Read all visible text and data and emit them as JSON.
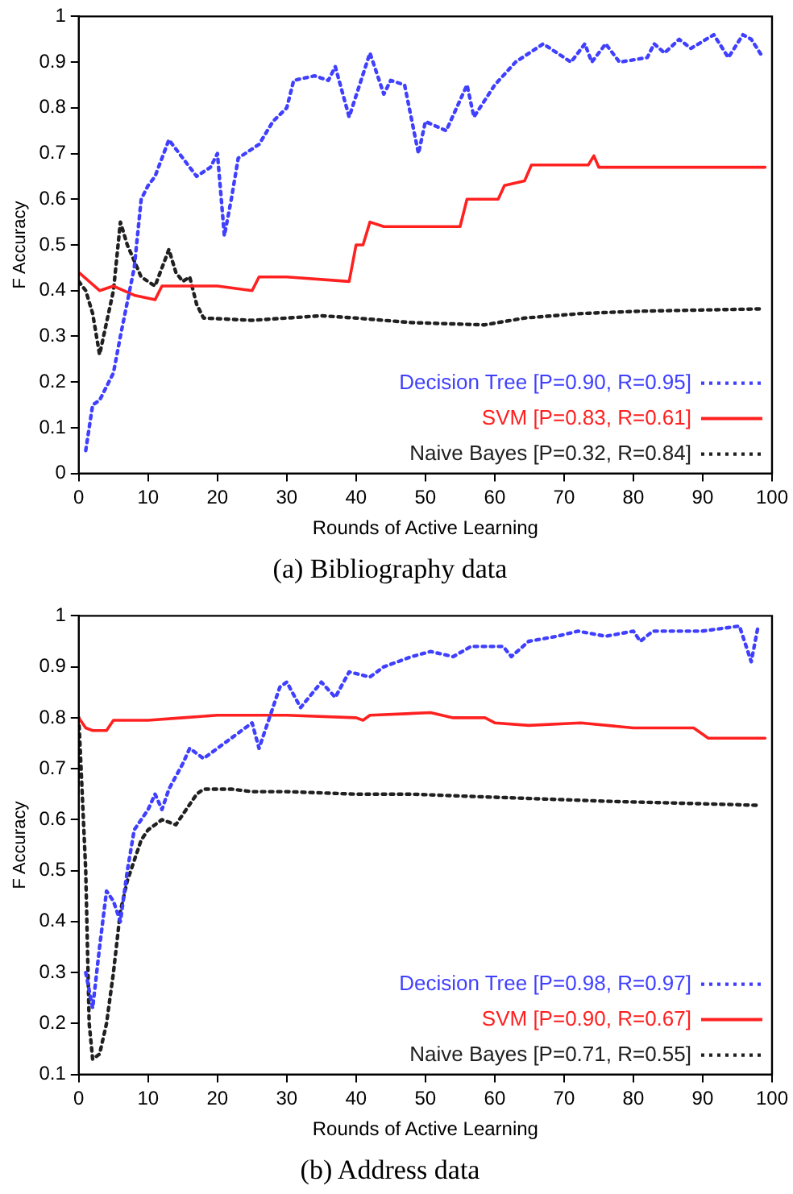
{
  "chart_data": [
    {
      "type": "line",
      "title": "(a) Bibliography data",
      "xlabel": "Rounds of Active Learning",
      "ylabel": "F Accuracy",
      "xlim": [
        0,
        100
      ],
      "xticks": [
        0,
        10,
        20,
        30,
        40,
        50,
        60,
        70,
        80,
        90,
        100
      ],
      "ylim": [
        0,
        1
      ],
      "yticks": [
        0,
        0.1,
        0.2,
        0.3,
        0.4,
        0.5,
        0.6,
        0.7,
        0.8,
        0.9,
        1
      ],
      "grid": false,
      "legend": "bottom right",
      "series": [
        {
          "name": "Decision Tree [P=0.90, R=0.95]",
          "color": "#3f3fff",
          "line_style": "dotted",
          "x": [
            1,
            2,
            3,
            5,
            6,
            8,
            9,
            10,
            11,
            13,
            14,
            17,
            19,
            20,
            21,
            22,
            23,
            26,
            28,
            30,
            31,
            34,
            36,
            37,
            39,
            42,
            44,
            45,
            47,
            49,
            50,
            53,
            56,
            57,
            60,
            63,
            67,
            71,
            73,
            74,
            76,
            78,
            82,
            83,
            84.5,
            86.6,
            88.3,
            91.6,
            93.7,
            95.8,
            97,
            98.7
          ],
          "values": [
            0.05,
            0.15,
            0.16,
            0.22,
            0.3,
            0.45,
            0.6,
            0.63,
            0.65,
            0.73,
            0.71,
            0.65,
            0.67,
            0.7,
            0.52,
            0.6,
            0.69,
            0.72,
            0.77,
            0.8,
            0.86,
            0.87,
            0.86,
            0.89,
            0.78,
            0.92,
            0.83,
            0.86,
            0.85,
            0.7,
            0.77,
            0.75,
            0.85,
            0.78,
            0.85,
            0.9,
            0.94,
            0.9,
            0.94,
            0.9,
            0.94,
            0.9,
            0.91,
            0.94,
            0.92,
            0.95,
            0.93,
            0.96,
            0.91,
            0.96,
            0.95,
            0.91
          ]
        },
        {
          "name": "SVM [P=0.83, R=0.61]",
          "color": "#ff2020",
          "line_style": "solid",
          "x": [
            0,
            3,
            5,
            8,
            11,
            12,
            20,
            25,
            26,
            30,
            39,
            40,
            41,
            42,
            44,
            55,
            56,
            60.5,
            61.4,
            64.3,
            65.3,
            73.5,
            74.3,
            75,
            99
          ],
          "values": [
            0.44,
            0.4,
            0.41,
            0.39,
            0.38,
            0.41,
            0.41,
            0.4,
            0.43,
            0.43,
            0.42,
            0.5,
            0.5,
            0.55,
            0.54,
            0.54,
            0.6,
            0.6,
            0.63,
            0.64,
            0.675,
            0.675,
            0.695,
            0.67,
            0.67
          ]
        },
        {
          "name": "Naive Bayes [P=0.32, R=0.84]",
          "color": "#202020",
          "line_style": "dotted",
          "x": [
            0,
            1,
            2,
            3,
            4,
            5,
            6,
            7,
            9,
            11,
            13,
            14,
            15,
            16,
            17,
            18,
            25,
            30,
            35,
            40,
            48,
            58.5,
            64.3,
            72.6,
            81,
            98.5
          ],
          "values": [
            0.42,
            0.4,
            0.35,
            0.26,
            0.33,
            0.4,
            0.55,
            0.5,
            0.43,
            0.41,
            0.49,
            0.44,
            0.42,
            0.43,
            0.37,
            0.34,
            0.335,
            0.34,
            0.345,
            0.34,
            0.33,
            0.325,
            0.34,
            0.35,
            0.355,
            0.36
          ]
        }
      ]
    },
    {
      "type": "line",
      "title": "(b) Address data",
      "xlabel": "Rounds of Active Learning",
      "ylabel": "F Accuracy",
      "xlim": [
        0,
        100
      ],
      "xticks": [
        0,
        10,
        20,
        30,
        40,
        50,
        60,
        70,
        80,
        90,
        100
      ],
      "ylim": [
        0.1,
        1
      ],
      "yticks": [
        0.1,
        0.2,
        0.3,
        0.4,
        0.5,
        0.6,
        0.7,
        0.8,
        0.9,
        1
      ],
      "grid": false,
      "legend": "bottom right",
      "series": [
        {
          "name": "Decision Tree [P=0.98, R=0.97]",
          "color": "#3f3fff",
          "line_style": "dotted",
          "x": [
            1,
            2,
            3,
            4,
            5,
            6,
            7,
            8,
            10,
            11,
            12,
            13,
            15,
            16,
            17,
            18,
            20,
            23,
            25,
            26,
            27,
            29,
            30,
            32,
            35,
            37,
            39,
            42,
            44,
            48,
            50.75,
            54,
            56.6,
            61.2,
            62.4,
            64.9,
            69,
            72,
            76,
            80,
            81,
            82.8,
            89.9,
            95.3,
            97,
            98
          ],
          "values": [
            0.3,
            0.23,
            0.35,
            0.46,
            0.44,
            0.4,
            0.5,
            0.58,
            0.62,
            0.65,
            0.62,
            0.66,
            0.71,
            0.74,
            0.73,
            0.72,
            0.74,
            0.77,
            0.79,
            0.74,
            0.78,
            0.86,
            0.87,
            0.82,
            0.87,
            0.84,
            0.89,
            0.88,
            0.9,
            0.92,
            0.93,
            0.92,
            0.94,
            0.94,
            0.92,
            0.95,
            0.96,
            0.97,
            0.96,
            0.97,
            0.95,
            0.97,
            0.97,
            0.98,
            0.91,
            0.98
          ]
        },
        {
          "name": "SVM [P=0.90, R=0.67]",
          "color": "#ff2020",
          "line_style": "solid",
          "x": [
            0,
            1,
            2,
            4,
            5,
            10,
            15,
            20,
            30,
            40,
            41,
            42,
            50.75,
            54,
            58.6,
            60,
            64.9,
            72.4,
            80,
            88.7,
            90.8,
            99
          ],
          "values": [
            0.8,
            0.78,
            0.775,
            0.775,
            0.795,
            0.795,
            0.8,
            0.805,
            0.805,
            0.8,
            0.795,
            0.805,
            0.81,
            0.8,
            0.8,
            0.79,
            0.785,
            0.79,
            0.78,
            0.78,
            0.76,
            0.76
          ]
        },
        {
          "name": "Naive Bayes [P=0.71, R=0.55]",
          "color": "#202020",
          "line_style": "dotted",
          "x": [
            0,
            1,
            1.5,
            2,
            3,
            4,
            5,
            6,
            7,
            8,
            9,
            10,
            12,
            14,
            15,
            17,
            18,
            22,
            25,
            30,
            40,
            48,
            60,
            76.5,
            93.3,
            98.3
          ],
          "values": [
            0.8,
            0.5,
            0.2,
            0.13,
            0.14,
            0.2,
            0.3,
            0.42,
            0.48,
            0.52,
            0.56,
            0.58,
            0.6,
            0.59,
            0.61,
            0.65,
            0.66,
            0.66,
            0.655,
            0.655,
            0.65,
            0.65,
            0.644,
            0.636,
            0.63,
            0.628
          ]
        }
      ]
    }
  ]
}
